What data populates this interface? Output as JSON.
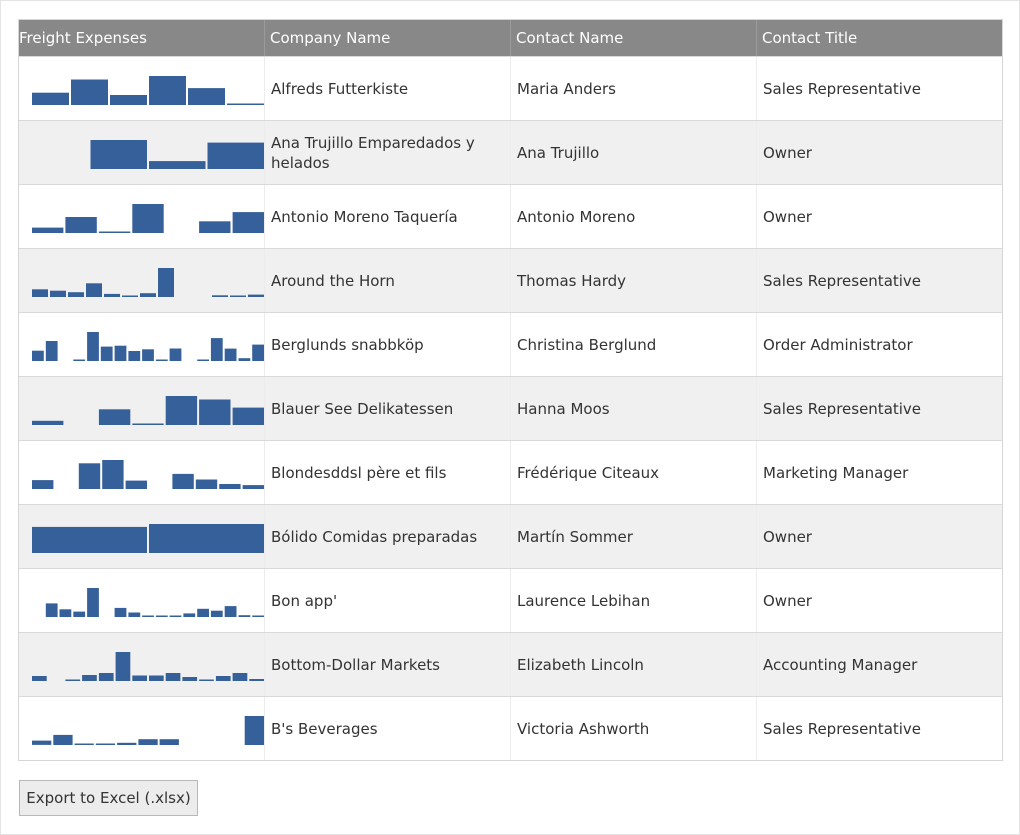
{
  "grid": {
    "columns": [
      "Freight Expenses",
      "Company Name",
      "Contact Name",
      "Contact Title"
    ],
    "bar_color": "#36609a",
    "header_bg": "#888888",
    "rows": [
      {
        "company": "Alfreds Futterkiste",
        "contact": "Maria Anders",
        "title": "Sales Representative",
        "freight": [
          29.46,
          61.02,
          23.94,
          69.53,
          40.42,
          1.21
        ]
      },
      {
        "company": "Ana Trujillo Emparedados y helados",
        "contact": "Ana Trujillo",
        "title": "Owner",
        "freight": [
          0,
          43.9,
          11.99,
          39.92
        ]
      },
      {
        "company": "Antonio Moreno Taquería",
        "contact": "Antonio Moreno",
        "title": "Owner",
        "freight": [
          22.0,
          65.06,
          6.01,
          117.61,
          0,
          47.45,
          84.84
        ]
      },
      {
        "company": "Around the Horn",
        "contact": "Thomas Hardy",
        "title": "Sales Representative",
        "freight": [
          10.08,
          8.24,
          6.27,
          18.0,
          4.0,
          1.5,
          5.0,
          38.0,
          0,
          0,
          2.25,
          1.9,
          3.2
        ]
      },
      {
        "company": "Berglunds snabbköp",
        "contact": "Christina Berglund",
        "title": "Order Administrator",
        "freight": [
          9.1,
          17.68,
          0,
          0.5,
          25.7,
          12.8,
          13.6,
          8.9,
          10.4,
          1.3,
          11.1,
          0,
          1.0,
          20.3,
          11.0,
          2.5,
          14.5
        ]
      },
      {
        "company": "Blauer See Delikatessen",
        "contact": "Hanna Moos",
        "title": "Sales Representative",
        "freight": [
          23.0,
          0,
          85.0,
          3.0,
          157.0,
          138.0,
          94.0
        ]
      },
      {
        "company": "Blondesddsl père et fils",
        "contact": "Frédérique Citeaux",
        "title": "Marketing Manager",
        "freight": [
          16.0,
          0,
          46.0,
          52.0,
          15.0,
          0,
          27.0,
          17.0,
          9.0,
          7.0
        ]
      },
      {
        "company": "Bólido Comidas preparadas",
        "contact": "Martín Sommer",
        "title": "Owner",
        "freight": [
          77.92,
          86.53
        ]
      },
      {
        "company": "Bon app'",
        "contact": "Laurence Lebihan",
        "title": "Owner",
        "freight": [
          0,
          15.0,
          8.5,
          6.0,
          32.0,
          0,
          10.0,
          5.0,
          1.0,
          1.0,
          0.5,
          4.0,
          9.0,
          7.0,
          12.0,
          2.0,
          1.2
        ]
      },
      {
        "company": "Bottom-Dollar Markets",
        "contact": "Elizabeth Lincoln",
        "title": "Accounting Manager",
        "freight": [
          5.0,
          0,
          1.0,
          6.0,
          8.0,
          29.0,
          5.5,
          5.5,
          8.0,
          4.0,
          1.0,
          5.0,
          8.0,
          2.0
        ]
      },
      {
        "company": "B's Beverages",
        "contact": "Victoria Ashworth",
        "title": "Sales Representative",
        "freight": [
          3.0,
          7.0,
          1.0,
          0.5,
          1.5,
          4.0,
          4.0,
          0,
          0,
          0,
          20.0
        ]
      }
    ]
  },
  "export": {
    "label": "Export to Excel (.xlsx)"
  }
}
